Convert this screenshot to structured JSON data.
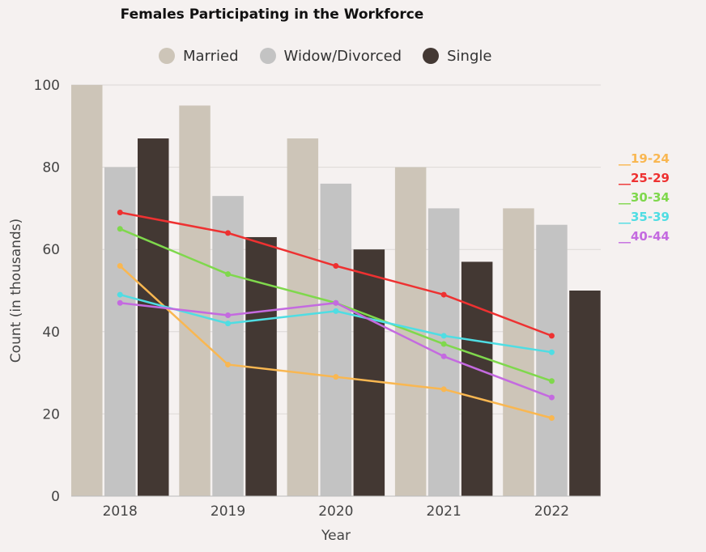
{
  "chart_data": {
    "type": "bar",
    "title": "Females Participating in the Workforce",
    "xlabel": "Year",
    "ylabel": "Count (in thousands)",
    "ylim": [
      0,
      100
    ],
    "yticks": [
      0,
      20,
      40,
      60,
      80,
      100
    ],
    "grid": true,
    "legend_position": "top",
    "categories": [
      "2018",
      "2019",
      "2020",
      "2021",
      "2022"
    ],
    "series": [
      {
        "name": "Married",
        "color": "#cdc5b8",
        "values": [
          100,
          95,
          87,
          80,
          70
        ]
      },
      {
        "name": "Widow/Divorced",
        "color": "#c3c3c3",
        "values": [
          80,
          73,
          76,
          70,
          66
        ]
      },
      {
        "name": "Single",
        "color": "#433833",
        "values": [
          87,
          63,
          60,
          57,
          50
        ]
      }
    ],
    "lines": [
      {
        "name": "19-24",
        "label": "__19-24",
        "color": "#f9b751",
        "values": [
          56,
          32,
          29,
          26,
          19
        ]
      },
      {
        "name": "25-29",
        "label": "__25-29",
        "color": "#ee3131",
        "values": [
          69,
          64,
          56,
          49,
          39
        ]
      },
      {
        "name": "30-34",
        "label": "__30-34",
        "color": "#7fd84c",
        "values": [
          65,
          54,
          47,
          37,
          28
        ]
      },
      {
        "name": "35-39",
        "label": "__35-39",
        "color": "#4fdde3",
        "values": [
          49,
          42,
          45,
          39,
          35
        ]
      },
      {
        "name": "40-44",
        "label": "__40-44",
        "color": "#c46ae0",
        "values": [
          47,
          44,
          47,
          34,
          24
        ]
      }
    ]
  }
}
